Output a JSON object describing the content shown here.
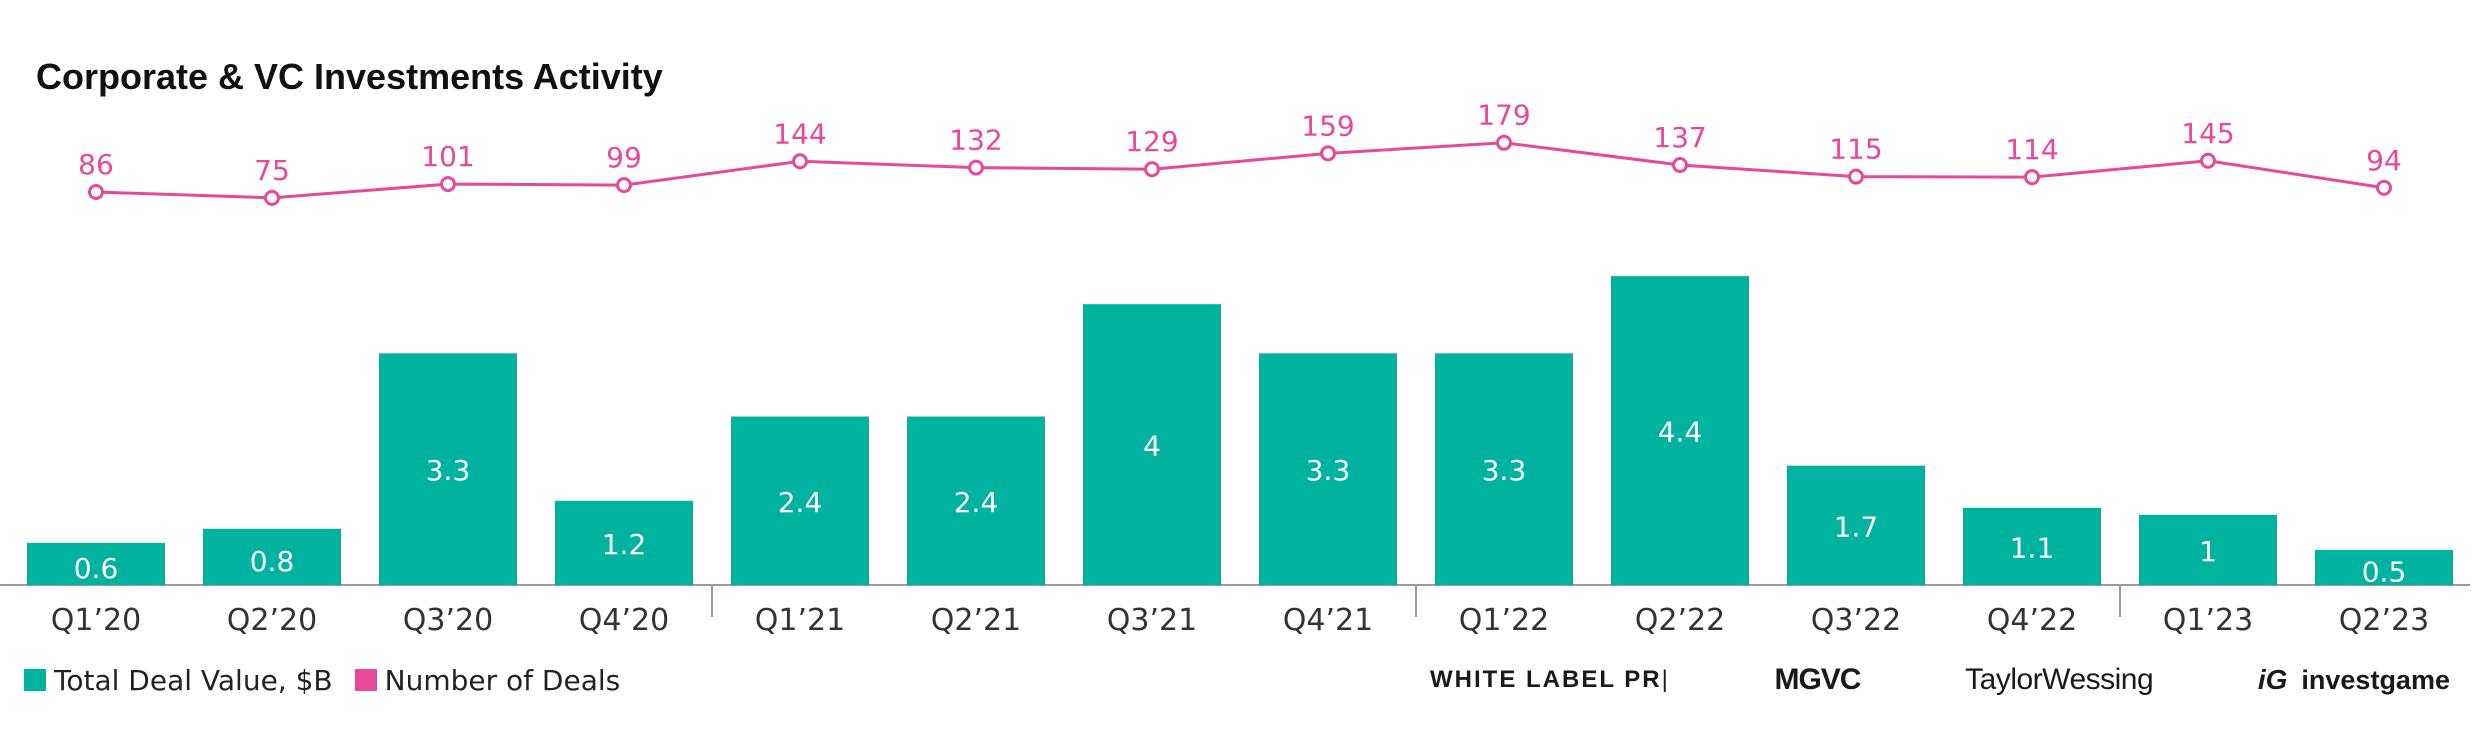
{
  "chart_data": {
    "type": "bar",
    "title": "Corporate & VC Investments Activity",
    "categories": [
      "Q1’20",
      "Q2’20",
      "Q3’20",
      "Q4’20",
      "Q1’21",
      "Q2’21",
      "Q3’21",
      "Q4’21",
      "Q1’22",
      "Q2’22",
      "Q3’22",
      "Q4’22",
      "Q1’23",
      "Q2’23"
    ],
    "series": [
      {
        "name": "Total Deal Value, $B",
        "type": "bar",
        "color": "#00B2A0",
        "values": [
          0.6,
          0.8,
          3.3,
          1.2,
          2.4,
          2.4,
          4,
          3.3,
          3.3,
          4.4,
          1.7,
          1.1,
          1,
          0.5
        ]
      },
      {
        "name": "Number of Deals",
        "type": "line",
        "color": "#E8489A",
        "values": [
          86,
          75,
          101,
          99,
          144,
          132,
          129,
          159,
          179,
          137,
          115,
          114,
          145,
          94
        ]
      }
    ],
    "grid": false,
    "legend_position": "bottom-left"
  },
  "logos": {
    "white_label_pr": "WHITE LABEL PR",
    "mgvc": "MGVC",
    "taylor_wessing": "TaylorWessing",
    "investgame": "investgame"
  }
}
